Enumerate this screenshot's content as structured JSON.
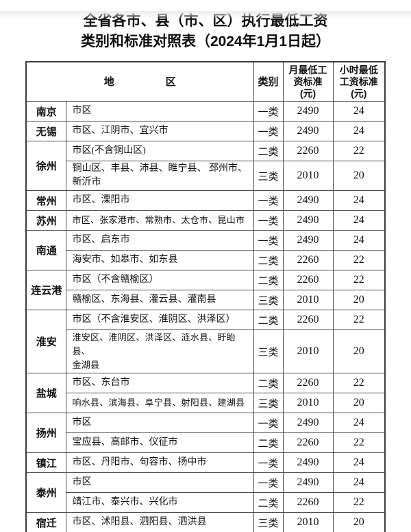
{
  "page": {
    "title_line1": "全省各市、县（市、区）执行最低工资",
    "title_line2": "类别和标准对照表（2024年1月1日起）"
  },
  "colors": {
    "text": "#111111",
    "table_border": "#3c3c3c",
    "grid_line": "#4c4c4c",
    "background": "#ffffff"
  },
  "table": {
    "headers": {
      "region": "地　　　　　区",
      "category": "类别",
      "monthly": "月最低工\n资标准\n(元)",
      "hourly": "小时最低\n工资标准\n(元)"
    },
    "groups": [
      {
        "city": "南京",
        "rows": [
          {
            "area": "市区",
            "category": "一类",
            "monthly": "2490",
            "hourly": "24"
          }
        ]
      },
      {
        "city": "无锡",
        "rows": [
          {
            "area": "市区、江阴市、宜兴市",
            "category": "一类",
            "monthly": "2490",
            "hourly": "24"
          }
        ]
      },
      {
        "city": "徐州",
        "rows": [
          {
            "area": "市区(不含铜山区)",
            "category": "二类",
            "monthly": "2260",
            "hourly": "22"
          },
          {
            "area": "铜山区、丰县、沛县、睢宁县、 邳州市、\n新沂市",
            "category": "三类",
            "monthly": "2010",
            "hourly": "20"
          }
        ]
      },
      {
        "city": "常州",
        "rows": [
          {
            "area": "市区、溧阳市",
            "category": "一类",
            "monthly": "2490",
            "hourly": "24"
          }
        ]
      },
      {
        "city": "苏州",
        "rows": [
          {
            "area": "市区、张家港市、常熟市、太仓市、昆山市",
            "category": "一类",
            "monthly": "2490",
            "hourly": "24"
          }
        ]
      },
      {
        "city": "南通",
        "rows": [
          {
            "area": "市区、启东市",
            "category": "一类",
            "monthly": "2490",
            "hourly": "24"
          },
          {
            "area": "海安市、如皋市、如东县",
            "category": "二类",
            "monthly": "2260",
            "hourly": "22"
          }
        ]
      },
      {
        "city": "连云港",
        "rows": [
          {
            "area": "市区（不含赣榆区）",
            "category": "二类",
            "monthly": "2260",
            "hourly": "22"
          },
          {
            "area": "赣榆区、东海县、灌云县、灌南县",
            "category": "三类",
            "monthly": "2010",
            "hourly": "20"
          }
        ]
      },
      {
        "city": "淮安",
        "rows": [
          {
            "area": "市区（不含淮安区、淮阴区、洪泽区）",
            "category": "二类",
            "monthly": "2260",
            "hourly": "22"
          },
          {
            "area": "淮安区、淮阴区、洪泽区、涟水县、盱眙县、\n金湖县",
            "category": "三类",
            "monthly": "2010",
            "hourly": "20"
          }
        ]
      },
      {
        "city": "盐城",
        "rows": [
          {
            "area": "市区、东台市",
            "category": "二类",
            "monthly": "2260",
            "hourly": "22"
          },
          {
            "area": "响水县、滨海县、阜宁县、射阳县、建湖县",
            "category": "三类",
            "monthly": "2010",
            "hourly": "20"
          }
        ]
      },
      {
        "city": "扬州",
        "rows": [
          {
            "area": "市区",
            "category": "一类",
            "monthly": "2490",
            "hourly": "24"
          },
          {
            "area": "宝应县、高邮市、仪征市",
            "category": "二类",
            "monthly": "2260",
            "hourly": "22"
          }
        ]
      },
      {
        "city": "镇江",
        "rows": [
          {
            "area": "市区、丹阳市、句容市、扬中市",
            "category": "一类",
            "monthly": "2490",
            "hourly": "24"
          }
        ]
      },
      {
        "city": "泰州",
        "rows": [
          {
            "area": "市区",
            "category": "一类",
            "monthly": "2490",
            "hourly": "24"
          },
          {
            "area": "靖江市、泰兴市、兴化市",
            "category": "二类",
            "monthly": "2260",
            "hourly": "22"
          }
        ]
      },
      {
        "city": "宿迁",
        "rows": [
          {
            "area": "市区、沭阳县、泗阳县、泗洪县",
            "category": "三类",
            "monthly": "2010",
            "hourly": "20"
          }
        ]
      }
    ]
  }
}
